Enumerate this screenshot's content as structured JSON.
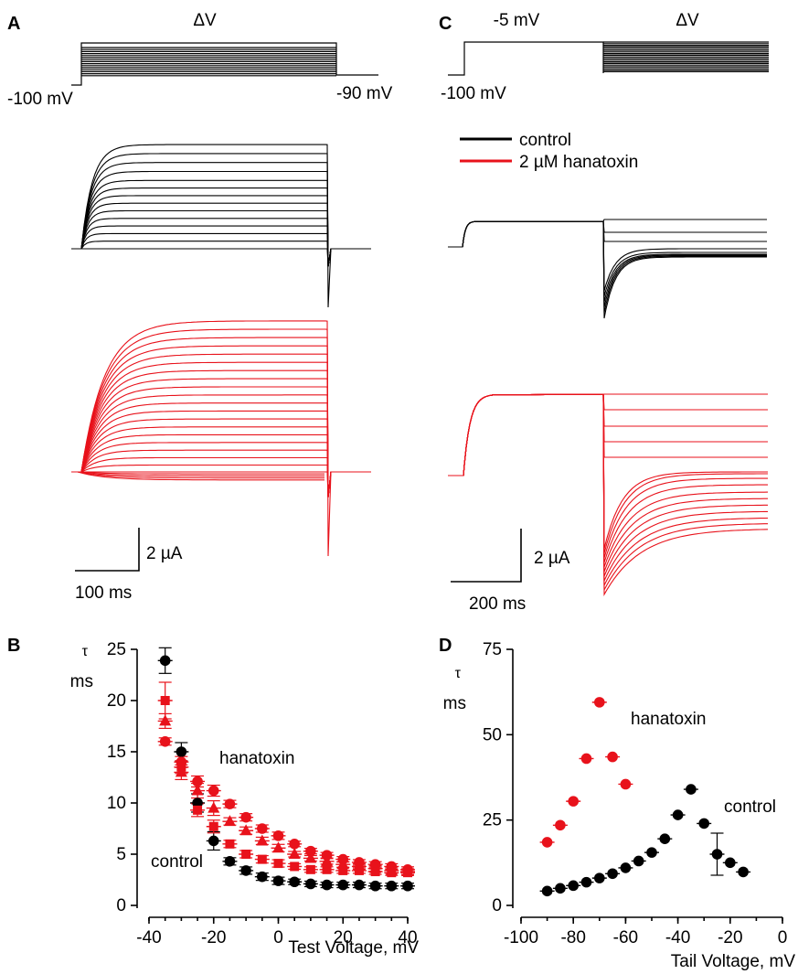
{
  "panel_labels": {
    "a": "A",
    "b": "B",
    "c": "C",
    "d": "D"
  },
  "panel_a": {
    "step_label": "ΔV",
    "holding_label": "-100 mV",
    "tail_label": "-90 mV",
    "scale_y_label": "2 µA",
    "scale_x_label": "100 ms"
  },
  "panel_c": {
    "prepulse_label": "-5 mV",
    "step_label": "ΔV",
    "holding_label": "-100 mV",
    "legend": [
      {
        "name": "control",
        "color": "#000000"
      },
      {
        "name": "2 µM hanatoxin",
        "color": "#e8121b"
      }
    ],
    "scale_y_label": "2 µA",
    "scale_x_label": "200 ms"
  },
  "colors": {
    "control": "#000000",
    "hanatoxin": "#e8121b"
  },
  "chart_data": [
    {
      "type": "scatter",
      "panel": "B",
      "xlabel": "Test Voltage, mV",
      "ylabel_line1": "τ",
      "ylabel_line2": "ms",
      "xlim": [
        -40,
        40
      ],
      "ylim": [
        0,
        25
      ],
      "xticks": [
        -40,
        -20,
        0,
        20,
        40
      ],
      "yticks": [
        0,
        5,
        10,
        15,
        20,
        25
      ],
      "annotations": [
        "hanatoxin",
        "control"
      ],
      "series": [
        {
          "color": "#000000",
          "marker": "circle",
          "x": [
            -35,
            -30,
            -25,
            -20,
            -15,
            -10,
            -5,
            0,
            5,
            10,
            15,
            20,
            25,
            30,
            35,
            40
          ],
          "y": [
            23.9,
            15.0,
            10.0,
            6.3,
            4.3,
            3.4,
            2.8,
            2.4,
            2.3,
            2.1,
            2.0,
            2.0,
            2.0,
            1.9,
            1.9,
            1.9
          ]
        },
        {
          "color": "#e8121b",
          "marker": "circle",
          "x": [
            -35,
            -30,
            -25,
            -20,
            -15,
            -10,
            -5,
            0,
            5,
            10,
            15,
            20,
            25,
            30,
            35,
            40
          ],
          "y": [
            16.0,
            14.0,
            12.1,
            11.2,
            9.9,
            8.6,
            7.5,
            6.8,
            6.0,
            5.3,
            4.9,
            4.5,
            4.2,
            4.0,
            3.8,
            3.5
          ]
        },
        {
          "color": "#e8121b",
          "marker": "triangle",
          "x": [
            -35,
            -30,
            -25,
            -20,
            -15,
            -10,
            -5,
            0,
            5,
            10,
            15,
            20,
            25,
            30,
            35,
            40
          ],
          "y": [
            18.0,
            13.0,
            11.2,
            9.5,
            8.2,
            7.3,
            6.3,
            5.6,
            5.0,
            4.6,
            4.3,
            4.0,
            3.8,
            3.6,
            3.4,
            3.3
          ]
        },
        {
          "color": "#e8121b",
          "marker": "square",
          "x": [
            -35,
            -30,
            -25,
            -20,
            -15,
            -10,
            -5,
            0,
            5,
            10,
            15,
            20,
            25,
            30,
            35,
            40
          ],
          "y": [
            20.0,
            13.5,
            9.3,
            7.7,
            6.0,
            5.0,
            4.5,
            4.1,
            3.8,
            3.5,
            3.5,
            3.4,
            3.4,
            3.3,
            3.2,
            3.2
          ]
        }
      ]
    },
    {
      "type": "scatter",
      "panel": "D",
      "xlabel": "Tail Voltage, mV",
      "ylabel_line1": "τ",
      "ylabel_line2": "ms",
      "xlim": [
        -100,
        0
      ],
      "ylim": [
        0,
        75
      ],
      "xticks": [
        -100,
        -80,
        -60,
        -40,
        -20,
        0
      ],
      "yticks": [
        0,
        25,
        50,
        75
      ],
      "annotations": [
        "hanatoxin",
        "control"
      ],
      "series": [
        {
          "color": "#e8121b",
          "marker": "circle",
          "x": [
            -90,
            -85,
            -80,
            -75,
            -70,
            -65,
            -60
          ],
          "y": [
            18.5,
            23.5,
            30.5,
            43.0,
            59.5,
            43.5,
            35.5
          ]
        },
        {
          "color": "#000000",
          "marker": "circle",
          "x": [
            -90,
            -85,
            -80,
            -75,
            -70,
            -65,
            -60,
            -55,
            -50,
            -45,
            -40,
            -35,
            -30,
            -25,
            -20,
            -15
          ],
          "y": [
            4.2,
            5.0,
            5.8,
            6.8,
            8.0,
            9.3,
            11.0,
            13.0,
            15.5,
            19.5,
            26.5,
            34.0,
            24.0,
            15.0,
            12.5,
            9.8
          ]
        }
      ]
    }
  ]
}
